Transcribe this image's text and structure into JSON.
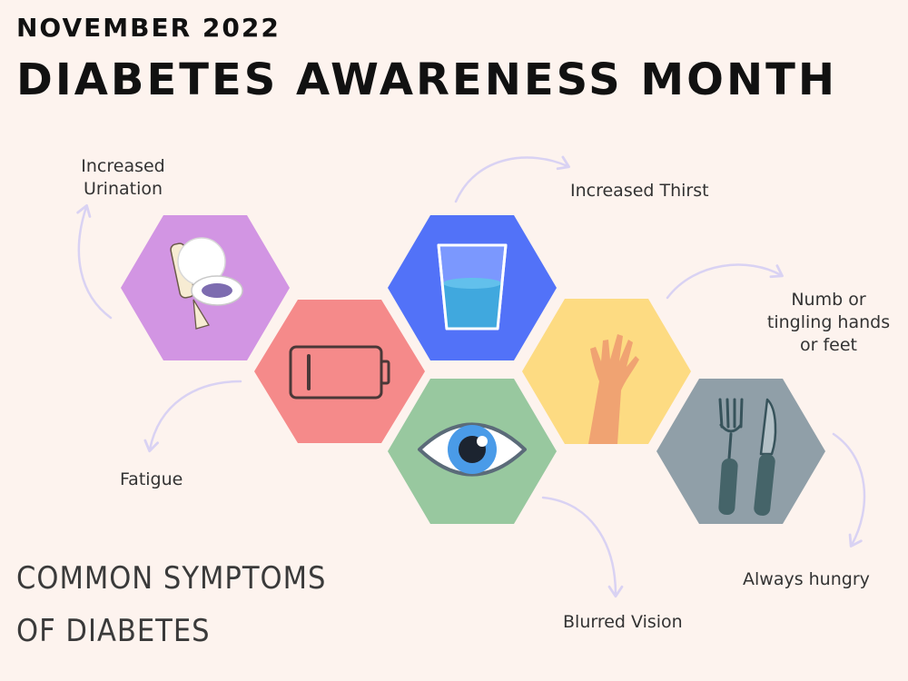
{
  "header": {
    "kicker": "NOVEMBER 2022",
    "title": "DIABETES AWARENESS MONTH"
  },
  "footer": {
    "subtitle": "COMMON SYMPTOMS OF DIABETES"
  },
  "symptoms": [
    {
      "label": "Increased Urination",
      "icon": "toilet-icon",
      "color": "#d295e3"
    },
    {
      "label": "Fatigue",
      "icon": "low-battery-icon",
      "color": "#f58a8a"
    },
    {
      "label": "Increased Thirst",
      "icon": "water-glass-icon",
      "color": "#5272f8"
    },
    {
      "label": "Blurred Vision",
      "icon": "eye-icon",
      "color": "#98c89f"
    },
    {
      "label": "Numb or tingling hands or feet",
      "icon": "hand-icon",
      "color": "#fddb82"
    },
    {
      "label": "Always hungry",
      "icon": "fork-knife-icon",
      "color": "#909fa8"
    }
  ],
  "colors": {
    "background": "#fdf3ee",
    "arrow": "#d9d2f3"
  }
}
